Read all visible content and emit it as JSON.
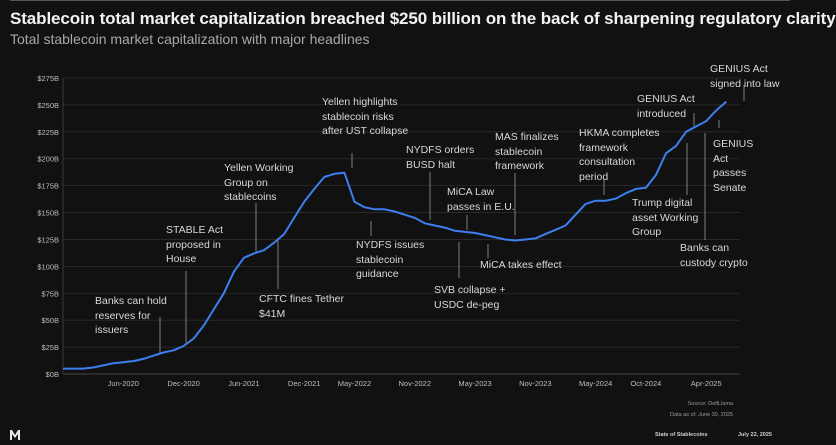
{
  "title": "Stablecoin total market capitalization breached $250 billion on the back of sharpening regulatory clarity",
  "subtitle": "Total stablecoin market capitalization with major headlines",
  "chart_data": {
    "type": "line",
    "title": "Stablecoin total market capitalization breached $250 billion on the back of sharpening regulatory clarity",
    "subtitle": "Total stablecoin market capitalization with major headlines",
    "xlabel": "",
    "ylabel": "",
    "ylim": [
      0,
      275
    ],
    "grid": true,
    "line_color": "#3d7fef",
    "y_ticks": [
      "$0B",
      "$25B",
      "$50B",
      "$75B",
      "$100B",
      "$125B",
      "$150B",
      "$175B",
      "$200B",
      "$225B",
      "$250B",
      "$275B"
    ],
    "x_ticks": [
      "Jun-2020",
      "Dec-2020",
      "Jun-2021",
      "Dec-2021",
      "May-2022",
      "Nov-2022",
      "May-2023",
      "Nov-2023",
      "May-2024",
      "Oct-2024",
      "Apr-2025"
    ],
    "x": [
      "2019-12",
      "2020-01",
      "2020-02",
      "2020-03",
      "2020-04",
      "2020-05",
      "2020-06",
      "2020-07",
      "2020-08",
      "2020-09",
      "2020-10",
      "2020-11",
      "2020-12",
      "2021-01",
      "2021-02",
      "2021-03",
      "2021-04",
      "2021-05",
      "2021-06",
      "2021-07",
      "2021-08",
      "2021-09",
      "2021-10",
      "2021-11",
      "2021-12",
      "2022-01",
      "2022-02",
      "2022-03",
      "2022-04",
      "2022-05",
      "2022-06",
      "2022-07",
      "2022-08",
      "2022-09",
      "2022-10",
      "2022-11",
      "2022-12",
      "2023-01",
      "2023-02",
      "2023-03",
      "2023-04",
      "2023-05",
      "2023-06",
      "2023-07",
      "2023-08",
      "2023-09",
      "2023-10",
      "2023-11",
      "2023-12",
      "2024-01",
      "2024-02",
      "2024-03",
      "2024-04",
      "2024-05",
      "2024-06",
      "2024-07",
      "2024-08",
      "2024-09",
      "2024-10",
      "2024-11",
      "2024-12",
      "2025-01",
      "2025-02",
      "2025-03",
      "2025-04",
      "2025-05",
      "2025-06"
    ],
    "values": [
      5,
      5,
      5,
      6,
      8,
      10,
      11,
      12,
      14,
      17,
      20,
      22,
      26,
      33,
      45,
      60,
      75,
      95,
      108,
      112,
      115,
      122,
      130,
      145,
      160,
      172,
      183,
      186,
      187,
      160,
      155,
      153,
      153,
      151,
      148,
      145,
      140,
      138,
      136,
      133,
      132,
      131,
      129,
      127,
      125,
      124,
      125,
      126,
      130,
      134,
      138,
      148,
      158,
      161,
      161,
      163,
      168,
      172,
      173,
      185,
      205,
      212,
      225,
      230,
      235,
      245,
      253
    ],
    "annotations": [
      {
        "text": "Banks can hold\nreserves for\nissuers"
      },
      {
        "text": "STABLE Act\nproposed in\nHouse"
      },
      {
        "text": "Yellen Working\nGroup on\nstablecoins"
      },
      {
        "text": "CFTC fines Tether\n$41M"
      },
      {
        "text": "Yellen highlights\nstablecoin risks\nafter UST collapse"
      },
      {
        "text": "NYDFS issues\nstablecoin\nguidance"
      },
      {
        "text": "NYDFS orders\nBUSD halt"
      },
      {
        "text": "MiCA Law\npasses in E.U."
      },
      {
        "text": "SVB collapse +\nUSDC de-peg"
      },
      {
        "text": "MiCA takes effect"
      },
      {
        "text": "MAS finalizes\nstablecoin\nframework"
      },
      {
        "text": "HKMA completes\nframework\nconsultation\nperiod"
      },
      {
        "text": "Trump digital\nasset Working\nGroup"
      },
      {
        "text": "GENIUS Act\nintroduced"
      },
      {
        "text": "Banks can\ncustody crypto"
      },
      {
        "text": "GENIUS\nAct\npasses\nSenate"
      },
      {
        "text": "GENIUS Act\nsigned into law"
      }
    ]
  },
  "footer": {
    "source": "Source: DefiLlama",
    "data_as_of": "Data as of: June 30, 2025",
    "report": "State of Stablecoins",
    "date": "July 22, 2025",
    "logo_icon": "brand-logo-icon"
  }
}
